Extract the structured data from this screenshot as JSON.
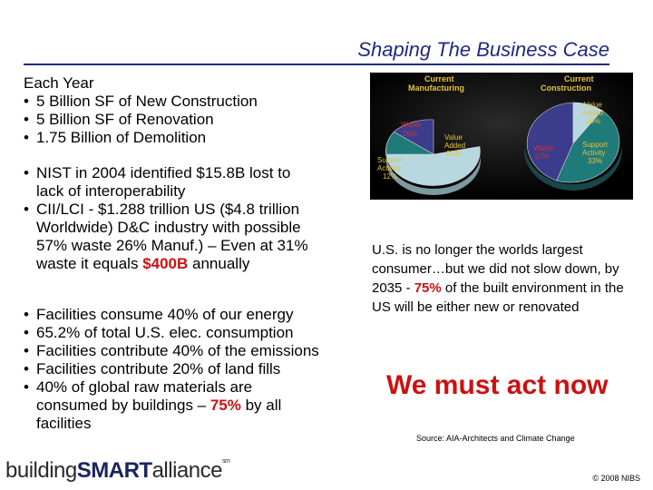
{
  "title": "Shaping The Business Case",
  "each_year": {
    "heading": "Each Year",
    "items": [
      "5 Billion SF of New Construction",
      "5 Billion SF of Renovation",
      "1.75 Billion of Demolition"
    ]
  },
  "nist": {
    "b1_l1": "NIST in 2004 identified $15.8B lost to",
    "b1_l2": "lack of interoperability",
    "b2_l1": "CII/LCI - $1.288 trillion US ($4.8 trillion",
    "b2_l2": "Worldwide) D&C industry with possible",
    "b2_l3": "57% waste 26% Manuf.) – Even at 31%",
    "b2_l4a": "waste it equals ",
    "b2_l4b": "$400B",
    "b2_l4c": " annually"
  },
  "facilities": {
    "i1": "Facilities consume 40% of our energy",
    "i2": "65.2% of total U.S. elec. consumption",
    "i3": "Facilities contribute 40% of the emissions",
    "i4": "Facilities contribute 20% of land fills",
    "i5_l1": "40% of global raw materials are",
    "i5_l2a": "consumed by buildings – ",
    "i5_l2b": "75%",
    "i5_l2c": " by all",
    "i5_l3": "facilities"
  },
  "us_text": {
    "a": "U.S. is no longer the worlds largest consumer…but we did not slow down, by 2035 - ",
    "b": "75%",
    "c": " of the built environment in the US will be either new or renovated"
  },
  "act_now": "We must act now",
  "source": "Source: AIA-Architects and Climate Change",
  "copyright": "© 2008 NIBS",
  "logo": {
    "part1": "building",
    "part2": "SMART",
    "part3": "alliance",
    "mark": "sm"
  },
  "pies": {
    "manufacturing": {
      "title_l1": "Current",
      "title_l2": "Manufacturing",
      "waste_l1": "Waste",
      "waste_l2": "26%",
      "support_l1": "Support",
      "support_l2": "Activity",
      "support_l3": "12%",
      "value_l1": "Value",
      "value_l2": "Added",
      "value_l3": "62%"
    },
    "construction": {
      "title_l1": "Current",
      "title_l2": "Construction",
      "value_l1": "Value",
      "value_l2": "Added",
      "value_l3": "10%",
      "waste_l1": "Waste",
      "waste_l2": "57%",
      "support_l1": "Support",
      "support_l2": "Activity",
      "support_l3": "33%"
    },
    "colors": {
      "waste": "#3c3c8c",
      "support": "#1f7a7a",
      "value": "#b8d8e0",
      "label_gold": "#e6c23a",
      "label_red": "#cc3333"
    }
  }
}
